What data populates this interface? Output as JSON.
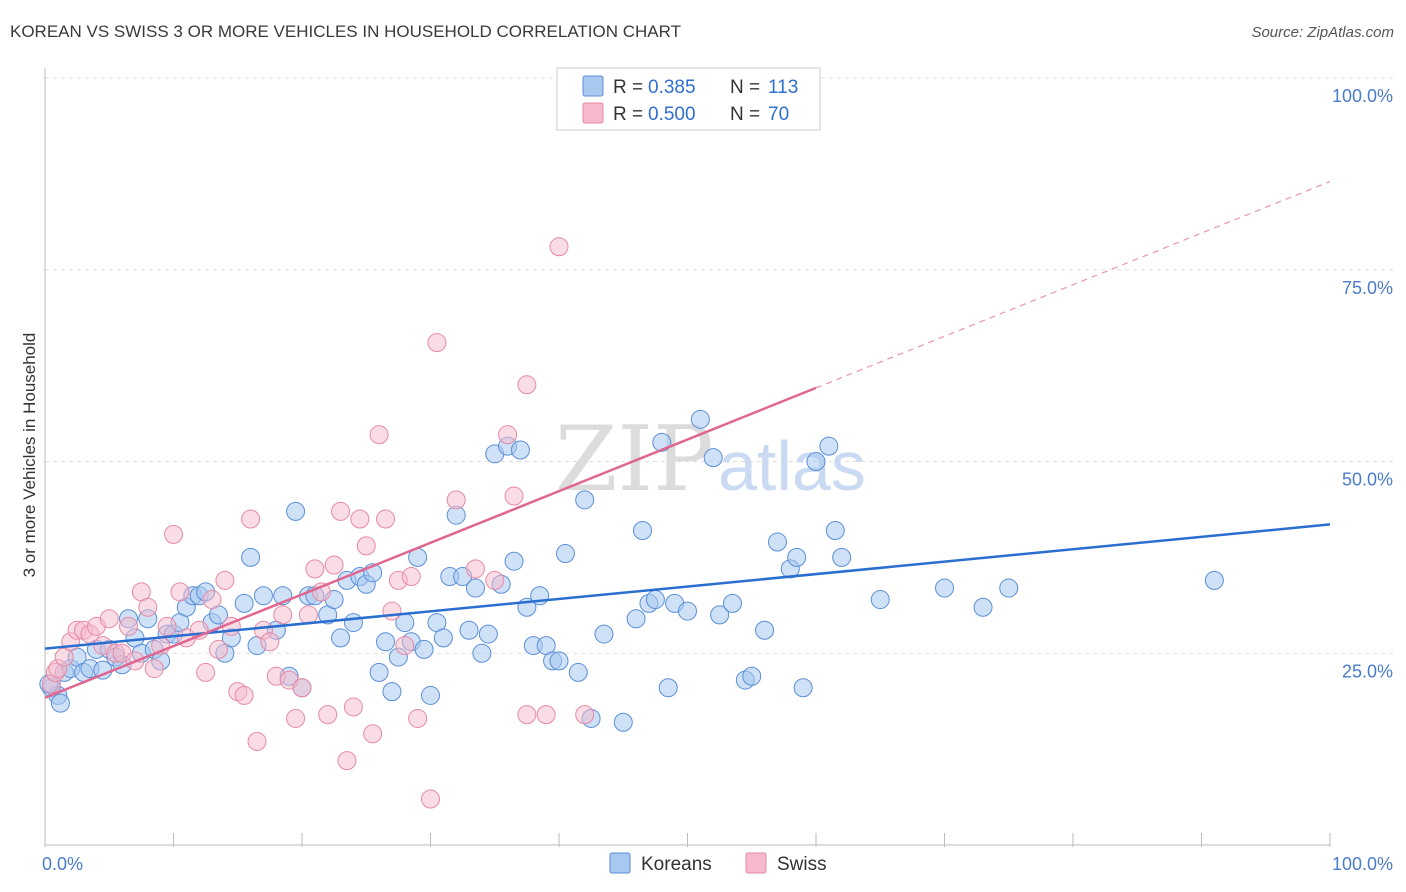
{
  "title": "KOREAN VS SWISS 3 OR MORE VEHICLES IN HOUSEHOLD CORRELATION CHART",
  "source": "Source: ZipAtlas.com",
  "watermark": {
    "zip": "ZIP",
    "atlas": "atlas"
  },
  "legend": {
    "r_label": "R =",
    "n_label": "N =",
    "rows": [
      {
        "r": "0.385",
        "n": "113",
        "color": "#a8c8f0"
      },
      {
        "r": "0.500",
        "n": "70",
        "color": "#f6b9cb"
      }
    ]
  },
  "bottom_legend": [
    "Koreans",
    "Swiss"
  ],
  "colors": {
    "koreans_fill": "#a8c8f0",
    "koreans_stroke": "#5b8fd6",
    "koreans_line": "#2a6fd0",
    "swiss_fill": "#f6b9cb",
    "swiss_stroke": "#e68aa6",
    "swiss_line": "#e06690",
    "grid": "#dddddd"
  },
  "chart_data": {
    "type": "scatter",
    "title": "KOREAN VS SWISS 3 OR MORE VEHICLES IN HOUSEHOLD CORRELATION CHART",
    "xlabel": "",
    "ylabel": "3 or more Vehicles in Household",
    "xlim": [
      0,
      100
    ],
    "ylim": [
      0,
      100
    ],
    "x_tick_labels": [
      "0.0%",
      "100.0%"
    ],
    "y_tick_labels": [
      "25.0%",
      "50.0%",
      "75.0%",
      "100.0%"
    ],
    "y_ticks": [
      25,
      50,
      75,
      100
    ],
    "grid": true,
    "legend_position": "top-center",
    "series": [
      {
        "name": "Koreans",
        "r": 0.385,
        "n": 113,
        "trend": {
          "x": [
            0,
            100
          ],
          "y": [
            25.6,
            41.8
          ]
        },
        "points": [
          [
            0.5,
            20.5
          ],
          [
            1.0,
            19.5
          ],
          [
            1.2,
            18.5
          ],
          [
            1.5,
            22.5
          ],
          [
            2.0,
            23.0
          ],
          [
            2.5,
            24.5
          ],
          [
            3.0,
            22.5
          ],
          [
            3.5,
            23.0
          ],
          [
            4.0,
            25.5
          ],
          [
            4.5,
            22.8
          ],
          [
            5.0,
            25.5
          ],
          [
            5.5,
            24.5
          ],
          [
            6.0,
            23.5
          ],
          [
            6.5,
            29.5
          ],
          [
            7.0,
            27.0
          ],
          [
            7.5,
            25.0
          ],
          [
            8.0,
            29.5
          ],
          [
            8.5,
            25.5
          ],
          [
            9.0,
            24.0
          ],
          [
            9.5,
            27.5
          ],
          [
            10.0,
            27.5
          ],
          [
            10.5,
            29.0
          ],
          [
            11.0,
            31.0
          ],
          [
            11.5,
            32.5
          ],
          [
            12.0,
            32.5
          ],
          [
            12.5,
            33.0
          ],
          [
            13.0,
            29.0
          ],
          [
            13.5,
            30.0
          ],
          [
            14.0,
            25.0
          ],
          [
            14.5,
            27.0
          ],
          [
            15.5,
            31.5
          ],
          [
            16.0,
            37.5
          ],
          [
            16.5,
            26.0
          ],
          [
            17.0,
            32.5
          ],
          [
            18.0,
            28.0
          ],
          [
            18.5,
            32.5
          ],
          [
            19.0,
            22.0
          ],
          [
            19.5,
            43.5
          ],
          [
            20.0,
            20.5
          ],
          [
            20.5,
            32.5
          ],
          [
            21.0,
            32.5
          ],
          [
            22.0,
            30.0
          ],
          [
            22.5,
            32.0
          ],
          [
            23.0,
            27.0
          ],
          [
            23.5,
            34.5
          ],
          [
            24.0,
            29.0
          ],
          [
            24.5,
            35.0
          ],
          [
            25.0,
            34.0
          ],
          [
            25.5,
            35.5
          ],
          [
            26.0,
            22.5
          ],
          [
            26.5,
            26.5
          ],
          [
            27.0,
            20.0
          ],
          [
            27.5,
            24.5
          ],
          [
            28.0,
            29.0
          ],
          [
            28.5,
            26.5
          ],
          [
            29.0,
            37.5
          ],
          [
            29.5,
            25.5
          ],
          [
            30.0,
            19.5
          ],
          [
            30.5,
            29.0
          ],
          [
            31.0,
            27.0
          ],
          [
            31.5,
            35.0
          ],
          [
            32.0,
            43.0
          ],
          [
            32.5,
            35.0
          ],
          [
            33.0,
            28.0
          ],
          [
            33.5,
            33.5
          ],
          [
            34.0,
            25.0
          ],
          [
            34.5,
            27.5
          ],
          [
            35.0,
            51.0
          ],
          [
            35.5,
            34.0
          ],
          [
            36.0,
            52.0
          ],
          [
            36.5,
            37.0
          ],
          [
            37.0,
            51.5
          ],
          [
            37.5,
            31.0
          ],
          [
            38.0,
            26.0
          ],
          [
            38.5,
            32.5
          ],
          [
            39.0,
            26.0
          ],
          [
            39.5,
            24.0
          ],
          [
            40.0,
            24.0
          ],
          [
            40.5,
            38.0
          ],
          [
            41.5,
            22.5
          ],
          [
            42.0,
            45.0
          ],
          [
            42.5,
            16.5
          ],
          [
            43.5,
            27.5
          ],
          [
            45.0,
            16.0
          ],
          [
            46.0,
            29.5
          ],
          [
            46.5,
            41.0
          ],
          [
            47.0,
            31.5
          ],
          [
            47.5,
            32.0
          ],
          [
            48.0,
            52.5
          ],
          [
            48.5,
            20.5
          ],
          [
            49.0,
            31.5
          ],
          [
            50.0,
            30.5
          ],
          [
            51.0,
            55.5
          ],
          [
            52.0,
            50.5
          ],
          [
            52.5,
            30.0
          ],
          [
            53.5,
            31.5
          ],
          [
            54.5,
            21.5
          ],
          [
            55.0,
            22.0
          ],
          [
            56.0,
            28.0
          ],
          [
            57.0,
            39.5
          ],
          [
            58.0,
            36.0
          ],
          [
            58.5,
            37.5
          ],
          [
            59.0,
            20.5
          ],
          [
            60.0,
            50.0
          ],
          [
            61.0,
            52.0
          ],
          [
            61.5,
            41.0
          ],
          [
            62.0,
            37.5
          ],
          [
            65.0,
            32.0
          ],
          [
            70.0,
            33.5
          ],
          [
            73.0,
            31.0
          ],
          [
            75.0,
            33.5
          ],
          [
            91.0,
            34.5
          ],
          [
            0.3,
            21.0
          ]
        ]
      },
      {
        "name": "Swiss",
        "r": 0.5,
        "n": 70,
        "trend": {
          "x": [
            0,
            60
          ],
          "y": [
            19.2,
            59.6
          ]
        },
        "trend_extension": {
          "x": [
            60,
            100
          ],
          "y": [
            59.6,
            86.5
          ]
        },
        "points": [
          [
            0.5,
            21.0
          ],
          [
            0.8,
            22.5
          ],
          [
            1.0,
            23.0
          ],
          [
            1.5,
            24.5
          ],
          [
            2.0,
            26.5
          ],
          [
            2.5,
            28.0
          ],
          [
            3.0,
            28.0
          ],
          [
            3.5,
            27.5
          ],
          [
            4.0,
            28.5
          ],
          [
            4.5,
            26.0
          ],
          [
            5.0,
            29.5
          ],
          [
            5.5,
            25.0
          ],
          [
            6.0,
            25.0
          ],
          [
            6.5,
            28.5
          ],
          [
            7.0,
            24.0
          ],
          [
            7.5,
            33.0
          ],
          [
            8.0,
            31.0
          ],
          [
            8.5,
            23.0
          ],
          [
            9.0,
            26.0
          ],
          [
            9.5,
            28.5
          ],
          [
            10.0,
            40.5
          ],
          [
            10.5,
            33.0
          ],
          [
            11.0,
            27.0
          ],
          [
            12.0,
            28.0
          ],
          [
            12.5,
            22.5
          ],
          [
            13.0,
            32.0
          ],
          [
            13.5,
            25.5
          ],
          [
            14.0,
            34.5
          ],
          [
            14.5,
            28.5
          ],
          [
            15.0,
            20.0
          ],
          [
            15.5,
            19.5
          ],
          [
            16.0,
            42.5
          ],
          [
            16.5,
            13.5
          ],
          [
            17.0,
            28.0
          ],
          [
            17.5,
            26.5
          ],
          [
            18.0,
            22.0
          ],
          [
            18.5,
            30.0
          ],
          [
            19.0,
            21.5
          ],
          [
            19.5,
            16.5
          ],
          [
            20.0,
            20.5
          ],
          [
            20.5,
            30.0
          ],
          [
            21.0,
            36.0
          ],
          [
            21.5,
            33.0
          ],
          [
            22.0,
            17.0
          ],
          [
            22.5,
            36.5
          ],
          [
            23.0,
            43.5
          ],
          [
            23.5,
            11.0
          ],
          [
            24.0,
            18.0
          ],
          [
            24.5,
            42.5
          ],
          [
            25.0,
            39.0
          ],
          [
            25.5,
            14.5
          ],
          [
            26.0,
            53.5
          ],
          [
            26.5,
            42.5
          ],
          [
            27.0,
            30.5
          ],
          [
            27.5,
            34.5
          ],
          [
            28.0,
            26.0
          ],
          [
            28.5,
            35.0
          ],
          [
            29.0,
            16.5
          ],
          [
            30.0,
            6.0
          ],
          [
            30.5,
            65.5
          ],
          [
            32.0,
            45.0
          ],
          [
            33.5,
            36.0
          ],
          [
            35.0,
            34.5
          ],
          [
            36.0,
            53.5
          ],
          [
            36.5,
            45.5
          ],
          [
            37.5,
            17.0
          ],
          [
            37.5,
            60.0
          ],
          [
            39.0,
            17.0
          ],
          [
            40.0,
            78.0
          ],
          [
            42.0,
            17.0
          ]
        ]
      }
    ]
  }
}
